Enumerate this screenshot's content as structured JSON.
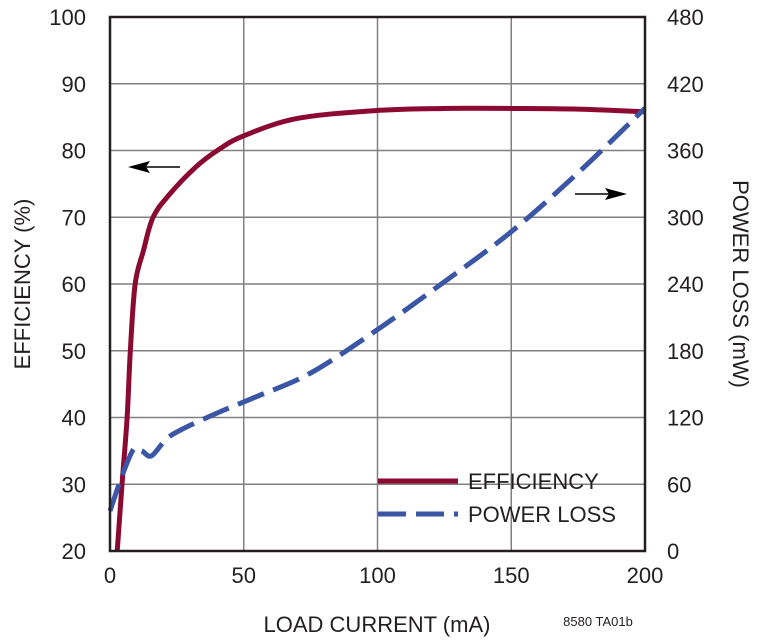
{
  "chart_data": {
    "type": "line",
    "title": "",
    "xlabel": "LOAD CURRENT (mA)",
    "ylabel": "EFFICIENCY (%)",
    "y2label": "POWER LOSS (mW)",
    "xlim": [
      0,
      200
    ],
    "ylim": [
      20,
      100
    ],
    "y2lim": [
      0,
      480
    ],
    "xticks": [
      "0",
      "50",
      "100",
      "150",
      "200"
    ],
    "yticks": [
      "20",
      "30",
      "40",
      "50",
      "60",
      "70",
      "80",
      "90",
      "100"
    ],
    "y2ticks": [
      "0",
      "60",
      "120",
      "180",
      "240",
      "300",
      "360",
      "420",
      "480"
    ],
    "grid": true,
    "legend_position": "bottom-right",
    "footnote": "8580 TA01b",
    "series": [
      {
        "name": "EFFICIENCY",
        "axis": "left",
        "color": "#8b0a32",
        "style": "solid",
        "x": [
          2.7,
          4.5,
          6.4,
          7.6,
          9.4,
          12.5,
          16.1,
          22.2,
          32,
          40.5,
          50,
          70,
          100,
          125,
          150,
          175,
          200
        ],
        "y": [
          20,
          30,
          40,
          50,
          60,
          65,
          70,
          73.4,
          77.5,
          80.1,
          82.2,
          84.8,
          86,
          86.3,
          86.3,
          86.2,
          85.8
        ]
      },
      {
        "name": "POWER LOSS",
        "axis": "right",
        "color": "#3a56a5",
        "style": "dashed",
        "x": [
          0,
          4.5,
          8.8,
          11.9,
          15.5,
          21,
          27,
          40.5,
          54,
          75,
          100,
          125,
          150,
          175,
          200
        ],
        "y": [
          36,
          67.5,
          91.5,
          90,
          85.5,
          100.5,
          109.5,
          124.5,
          138,
          160,
          199,
          242,
          287,
          340,
          398
        ]
      }
    ],
    "annotations": [
      {
        "type": "arrow",
        "direction": "left",
        "points_to": "EFFICIENCY"
      },
      {
        "type": "arrow",
        "direction": "right",
        "points_to": "POWER LOSS"
      }
    ]
  }
}
